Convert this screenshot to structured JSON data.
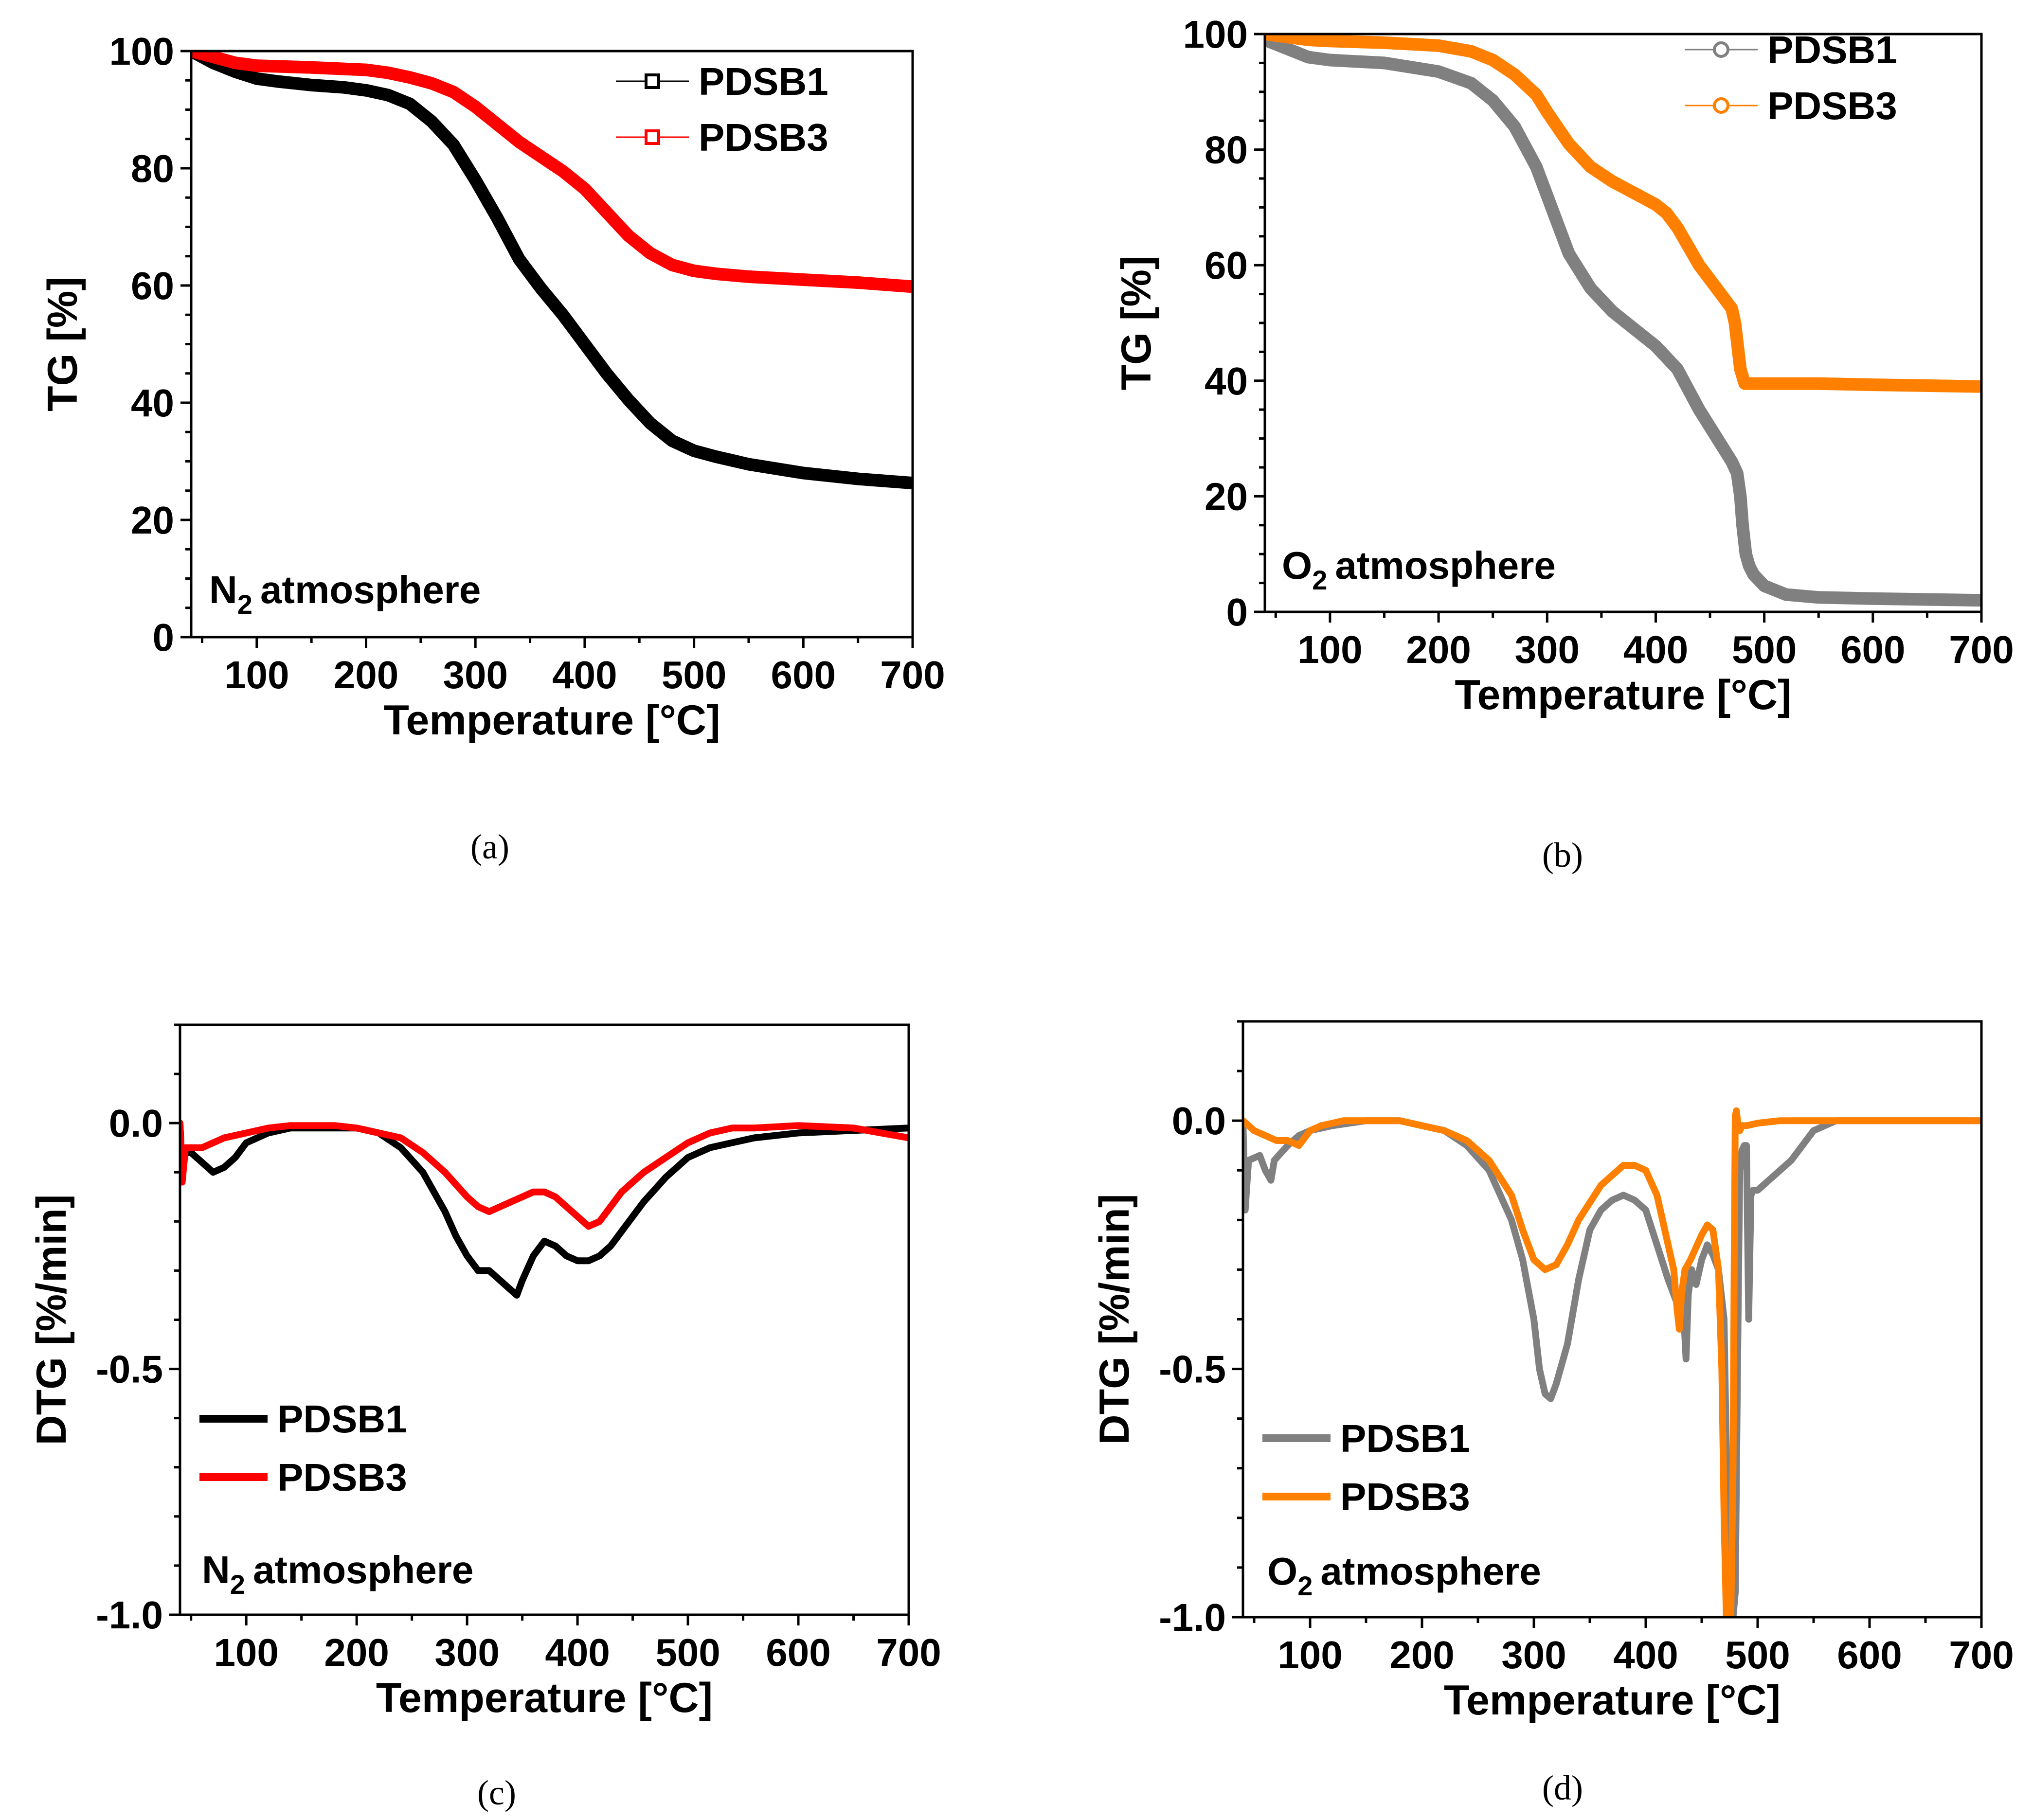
{
  "chart_data": [
    {
      "type": "line",
      "panel": "a",
      "caption": "(a)",
      "xlabel": "Temperature [°C]",
      "ylabel": "TG [%]",
      "xlim": [
        40,
        700
      ],
      "ylim": [
        0,
        100
      ],
      "xticks": [
        100,
        200,
        300,
        400,
        500,
        600,
        700
      ],
      "yticks": [
        0,
        20,
        40,
        60,
        80,
        100
      ],
      "annotation": "atmosphere",
      "annotation_element": "N",
      "annotation_subscript": "2",
      "legend_position": "top-right",
      "legend_marker": "square",
      "series": [
        {
          "name": "PDSB1",
          "color": "#000000",
          "x": [
            40,
            60,
            80,
            100,
            120,
            150,
            180,
            200,
            220,
            240,
            260,
            280,
            300,
            320,
            340,
            360,
            380,
            400,
            420,
            440,
            460,
            480,
            500,
            520,
            550,
            600,
            650,
            700
          ],
          "y": [
            100,
            98,
            96.5,
            95.3,
            94.8,
            94.2,
            93.8,
            93.3,
            92.5,
            91,
            88,
            84,
            78,
            71.5,
            64.5,
            59.5,
            55,
            50,
            45,
            40.5,
            36.5,
            33.5,
            31.8,
            30.8,
            29.5,
            28,
            27,
            26.3
          ]
        },
        {
          "name": "PDSB3",
          "color": "#ff0000",
          "x": [
            40,
            60,
            80,
            100,
            150,
            200,
            220,
            240,
            260,
            280,
            300,
            320,
            340,
            360,
            380,
            400,
            420,
            440,
            460,
            480,
            500,
            520,
            550,
            600,
            650,
            700
          ],
          "y": [
            100,
            99,
            98,
            97.5,
            97.2,
            96.8,
            96.3,
            95.5,
            94.5,
            93,
            90.5,
            87.5,
            84.5,
            82,
            79.5,
            76.5,
            72.5,
            68.5,
            65.5,
            63.5,
            62.5,
            62,
            61.5,
            61,
            60.5,
            59.8
          ]
        }
      ]
    },
    {
      "type": "line",
      "panel": "b",
      "caption": "(b)",
      "xlabel": "Temperature [°C]",
      "ylabel": "TG [%]",
      "xlim": [
        40,
        700
      ],
      "ylim": [
        0,
        100
      ],
      "xticks": [
        100,
        200,
        300,
        400,
        500,
        600,
        700
      ],
      "yticks": [
        0,
        20,
        40,
        60,
        80,
        100
      ],
      "annotation": "atmosphere",
      "annotation_element": "O",
      "annotation_subscript": "2",
      "legend_position": "top-right",
      "legend_marker": "circle",
      "series": [
        {
          "name": "PDSB1",
          "color": "#808080",
          "x": [
            40,
            60,
            80,
            100,
            150,
            200,
            230,
            250,
            270,
            290,
            300,
            320,
            340,
            360,
            380,
            400,
            420,
            440,
            460,
            470,
            475,
            478,
            480,
            483,
            486,
            490,
            500,
            520,
            550,
            600,
            700
          ],
          "y": [
            99,
            97.5,
            96,
            95.5,
            95,
            93.5,
            91.5,
            88.5,
            84,
            77,
            72,
            62,
            56,
            52,
            49,
            46,
            42,
            35,
            29,
            26,
            24,
            20,
            15,
            10,
            8,
            6.5,
            4.5,
            3,
            2.5,
            2.3,
            2
          ]
        },
        {
          "name": "PDSB3",
          "color": "#ff8000",
          "x": [
            40,
            60,
            80,
            100,
            150,
            200,
            230,
            250,
            270,
            290,
            300,
            320,
            340,
            360,
            380,
            400,
            410,
            420,
            440,
            460,
            470,
            473,
            478,
            482,
            490,
            500,
            550,
            600,
            700
          ],
          "y": [
            100,
            99.5,
            99,
            98.8,
            98.5,
            98,
            97,
            95.5,
            93,
            89.5,
            86.5,
            81,
            77,
            74.5,
            72.5,
            70.5,
            69,
            66.5,
            60,
            55,
            52.5,
            50,
            42,
            39.5,
            39.5,
            39.5,
            39.5,
            39.3,
            39
          ]
        }
      ]
    },
    {
      "type": "line",
      "panel": "c",
      "caption": "(c)",
      "xlabel": "Temperature [°C]",
      "ylabel": "DTG [%/min]",
      "xlim": [
        40,
        700
      ],
      "ylim": [
        -1.0,
        0.2
      ],
      "xticks": [
        100,
        200,
        300,
        400,
        500,
        600,
        700
      ],
      "yticks": [
        -1.0,
        -0.5,
        0.0
      ],
      "ytick_labels": [
        "-1.0",
        "-0.5",
        "0.0"
      ],
      "annotation": "atmosphere",
      "annotation_element": "N",
      "annotation_subscript": "2",
      "legend_position": "bottom-left",
      "legend_marker": "line",
      "series": [
        {
          "name": "PDSB1",
          "color": "#000000",
          "x": [
            40,
            42,
            45,
            50,
            60,
            70,
            80,
            90,
            100,
            110,
            120,
            140,
            160,
            180,
            200,
            220,
            240,
            260,
            280,
            290,
            300,
            310,
            320,
            330,
            340,
            345,
            350,
            360,
            370,
            380,
            390,
            400,
            410,
            420,
            430,
            440,
            450,
            460,
            480,
            500,
            520,
            540,
            560,
            600,
            650,
            700
          ],
          "y": [
            0,
            -0.1,
            -0.06,
            -0.06,
            -0.08,
            -0.1,
            -0.09,
            -0.07,
            -0.04,
            -0.03,
            -0.02,
            -0.01,
            -0.01,
            -0.01,
            -0.01,
            -0.02,
            -0.05,
            -0.1,
            -0.18,
            -0.23,
            -0.27,
            -0.3,
            -0.3,
            -0.32,
            -0.34,
            -0.35,
            -0.32,
            -0.27,
            -0.24,
            -0.25,
            -0.27,
            -0.28,
            -0.28,
            -0.27,
            -0.25,
            -0.22,
            -0.19,
            -0.16,
            -0.11,
            -0.07,
            -0.05,
            -0.04,
            -0.03,
            -0.02,
            -0.015,
            -0.01
          ]
        },
        {
          "name": "PDSB3",
          "color": "#ff0000",
          "x": [
            40,
            42,
            45,
            50,
            60,
            70,
            80,
            100,
            120,
            140,
            160,
            180,
            200,
            220,
            240,
            260,
            280,
            300,
            310,
            320,
            330,
            340,
            350,
            360,
            370,
            380,
            390,
            400,
            410,
            420,
            430,
            440,
            460,
            480,
            500,
            520,
            540,
            560,
            600,
            650,
            700
          ],
          "y": [
            0,
            -0.12,
            -0.05,
            -0.05,
            -0.05,
            -0.04,
            -0.03,
            -0.02,
            -0.01,
            -0.005,
            -0.005,
            -0.005,
            -0.01,
            -0.02,
            -0.03,
            -0.06,
            -0.1,
            -0.15,
            -0.17,
            -0.18,
            -0.17,
            -0.16,
            -0.15,
            -0.14,
            -0.14,
            -0.15,
            -0.17,
            -0.19,
            -0.21,
            -0.2,
            -0.17,
            -0.14,
            -0.1,
            -0.07,
            -0.04,
            -0.02,
            -0.01,
            -0.01,
            -0.005,
            -0.01,
            -0.03
          ]
        }
      ]
    },
    {
      "type": "line",
      "panel": "d",
      "caption": "(d)",
      "xlabel": "Temperature [°C]",
      "ylabel": "DTG [%/min]",
      "xlim": [
        40,
        700
      ],
      "ylim": [
        -1.0,
        0.2
      ],
      "xticks": [
        100,
        200,
        300,
        400,
        500,
        600,
        700
      ],
      "yticks": [
        -1.0,
        -0.5,
        0.0
      ],
      "ytick_labels": [
        "-1.0",
        "-0.5",
        "0.0"
      ],
      "annotation": "atmosphere",
      "annotation_element": "O",
      "annotation_subscript": "2",
      "legend_position": "bottom-left",
      "legend_marker": "line",
      "series": [
        {
          "name": "PDSB1",
          "color": "#808080",
          "x": [
            40,
            42,
            45,
            55,
            60,
            65,
            68,
            72,
            80,
            90,
            100,
            120,
            150,
            180,
            200,
            220,
            240,
            260,
            280,
            290,
            300,
            305,
            310,
            315,
            320,
            330,
            340,
            350,
            360,
            370,
            380,
            390,
            400,
            410,
            420,
            425,
            430,
            433,
            436,
            438,
            441,
            445,
            450,
            455,
            460,
            465,
            470,
            473,
            476,
            478,
            480,
            482,
            484,
            486,
            488,
            490,
            492,
            494,
            496,
            500,
            510,
            530,
            540,
            550,
            570,
            600,
            700
          ],
          "y": [
            0,
            -0.18,
            -0.08,
            -0.07,
            -0.1,
            -0.12,
            -0.08,
            -0.07,
            -0.05,
            -0.03,
            -0.02,
            -0.01,
            0,
            0,
            -0.01,
            -0.02,
            -0.05,
            -0.1,
            -0.2,
            -0.28,
            -0.4,
            -0.5,
            -0.55,
            -0.56,
            -0.53,
            -0.45,
            -0.32,
            -0.22,
            -0.18,
            -0.16,
            -0.15,
            -0.16,
            -0.18,
            -0.25,
            -0.32,
            -0.35,
            -0.38,
            -0.35,
            -0.48,
            -0.35,
            -0.3,
            -0.33,
            -0.28,
            -0.25,
            -0.27,
            -0.3,
            -0.4,
            -0.8,
            -0.99,
            -1.0,
            -0.95,
            -0.5,
            -0.1,
            -0.06,
            -0.05,
            -0.05,
            -0.4,
            -0.15,
            -0.14,
            -0.14,
            -0.12,
            -0.08,
            -0.05,
            -0.02,
            0,
            0,
            0
          ]
        },
        {
          "name": "PDSB3",
          "color": "#ff8000",
          "x": [
            40,
            45,
            50,
            60,
            70,
            80,
            90,
            100,
            110,
            130,
            150,
            180,
            200,
            220,
            240,
            260,
            280,
            290,
            300,
            310,
            320,
            330,
            340,
            360,
            380,
            390,
            400,
            410,
            420,
            425,
            428,
            430,
            432,
            435,
            440,
            450,
            455,
            460,
            465,
            468,
            470,
            472,
            474,
            476,
            478,
            479,
            480,
            481,
            482,
            484,
            486,
            490,
            500,
            520,
            540,
            560,
            600,
            650,
            700
          ],
          "y": [
            0,
            -0.01,
            -0.02,
            -0.03,
            -0.04,
            -0.04,
            -0.05,
            -0.02,
            -0.01,
            0,
            0,
            0,
            -0.01,
            -0.02,
            -0.04,
            -0.08,
            -0.15,
            -0.22,
            -0.28,
            -0.3,
            -0.29,
            -0.25,
            -0.2,
            -0.13,
            -0.09,
            -0.09,
            -0.1,
            -0.15,
            -0.25,
            -0.3,
            -0.38,
            -0.42,
            -0.35,
            -0.3,
            -0.28,
            -0.23,
            -0.21,
            -0.22,
            -0.3,
            -0.5,
            -0.8,
            -1.0,
            -1.0,
            -1.0,
            -0.7,
            -0.3,
            0.01,
            0.02,
            0,
            -0.02,
            -0.01,
            -0.01,
            -0.005,
            0,
            0,
            0,
            0,
            0,
            0
          ]
        }
      ]
    }
  ]
}
